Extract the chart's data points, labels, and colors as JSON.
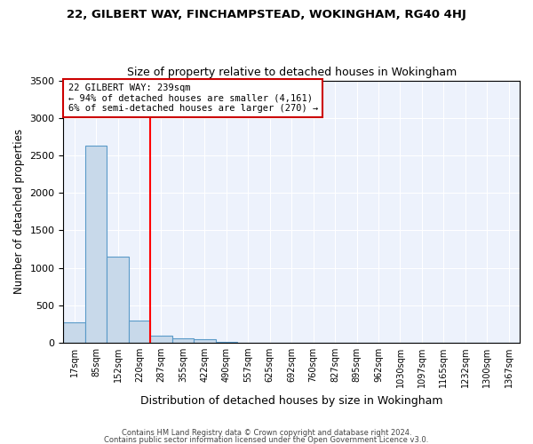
{
  "title1": "22, GILBERT WAY, FINCHAMPSTEAD, WOKINGHAM, RG40 4HJ",
  "title2": "Size of property relative to detached houses in Wokingham",
  "xlabel": "Distribution of detached houses by size in Wokingham",
  "ylabel": "Number of detached properties",
  "bin_labels": [
    "17sqm",
    "85sqm",
    "152sqm",
    "220sqm",
    "287sqm",
    "355sqm",
    "422sqm",
    "490sqm",
    "557sqm",
    "625sqm",
    "692sqm",
    "760sqm",
    "827sqm",
    "895sqm",
    "962sqm",
    "1030sqm",
    "1097sqm",
    "1165sqm",
    "1232sqm",
    "1300sqm",
    "1367sqm"
  ],
  "bar_heights": [
    270,
    2630,
    1150,
    290,
    90,
    55,
    40,
    5,
    3,
    2,
    2,
    2,
    2,
    2,
    2,
    2,
    2,
    2,
    2,
    2,
    0
  ],
  "bar_color": "#c8d9ea",
  "bar_edge_color": "#5a9ac8",
  "red_line_x": 3.5,
  "annotation_text": "22 GILBERT WAY: 239sqm\n← 94% of detached houses are smaller (4,161)\n6% of semi-detached houses are larger (270) →",
  "annotation_box_color": "white",
  "annotation_box_edge": "#cc0000",
  "ylim": [
    0,
    3500
  ],
  "yticks": [
    0,
    500,
    1000,
    1500,
    2000,
    2500,
    3000,
    3500
  ],
  "footer1": "Contains HM Land Registry data © Crown copyright and database right 2024.",
  "footer2": "Contains public sector information licensed under the Open Government Licence v3.0.",
  "bg_color": "#edf2fc"
}
